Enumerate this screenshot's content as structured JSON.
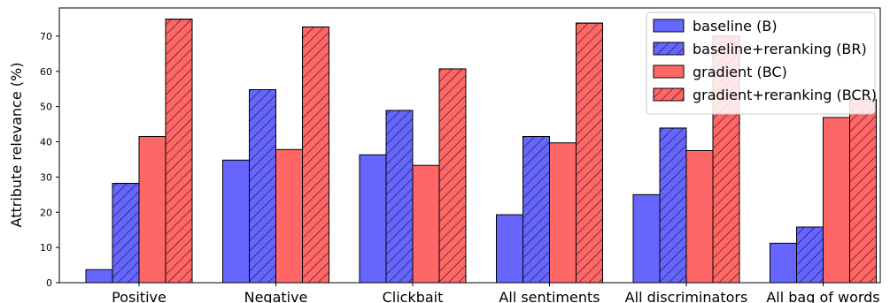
{
  "chart_data": {
    "type": "bar",
    "title": "",
    "xlabel": "",
    "ylabel": "Attribute relevance (%)",
    "ylim": [
      0,
      78
    ],
    "yticks": [
      0,
      10,
      20,
      30,
      40,
      50,
      60,
      70
    ],
    "grid": false,
    "legend_position": "top-right",
    "categories": [
      "Positive",
      "Negative",
      "Clickbait",
      "All sentiments",
      "All discriminators",
      "All bag of words"
    ],
    "series": [
      {
        "name": "baseline (B)",
        "color": "#6666ff",
        "hatch": false,
        "values": [
          3.7,
          34.8,
          36.3,
          19.3,
          25.0,
          11.2
        ]
      },
      {
        "name": "baseline+reranking (BR)",
        "color": "#6666ff",
        "hatch": true,
        "values": [
          28.2,
          54.8,
          48.9,
          41.5,
          43.9,
          15.8
        ]
      },
      {
        "name": "gradient (BC)",
        "color": "#ff6666",
        "hatch": false,
        "values": [
          41.5,
          37.8,
          33.3,
          39.7,
          37.5,
          46.9
        ]
      },
      {
        "name": "gradient+reranking (BCR)",
        "color": "#ff6666",
        "hatch": true,
        "values": [
          74.8,
          72.6,
          60.7,
          73.7,
          70.0,
          52.0
        ]
      }
    ]
  }
}
